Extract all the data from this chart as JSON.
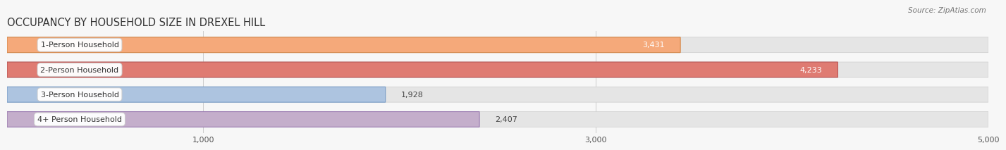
{
  "title": "OCCUPANCY BY HOUSEHOLD SIZE IN DREXEL HILL",
  "source": "Source: ZipAtlas.com",
  "categories": [
    "1-Person Household",
    "2-Person Household",
    "3-Person Household",
    "4+ Person Household"
  ],
  "values": [
    3431,
    4233,
    1928,
    2407
  ],
  "bar_colors": [
    "#f5a97a",
    "#df7b72",
    "#adc4e0",
    "#c4aecb"
  ],
  "bar_edge_colors": [
    "#d4884a",
    "#b85555",
    "#7a9ec8",
    "#9a7ab0"
  ],
  "label_inside_colors": [
    "#ffffff",
    "#ffffff",
    "#555555",
    "#555555"
  ],
  "xlim": [
    0,
    5000
  ],
  "xticks": [
    1000,
    3000,
    5000
  ],
  "bar_height": 0.62,
  "background_color": "#f7f7f7",
  "bar_bg_color": "#e5e5e5",
  "title_fontsize": 10.5,
  "label_fontsize": 8,
  "value_fontsize": 8,
  "tick_fontsize": 8,
  "source_fontsize": 7.5
}
